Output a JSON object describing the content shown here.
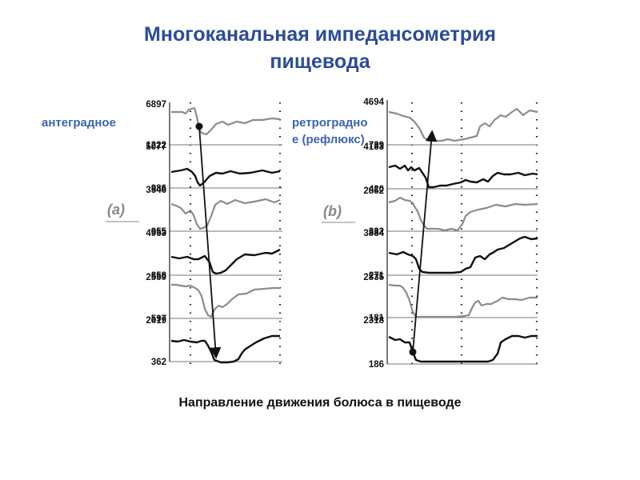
{
  "title": {
    "line1": "Многоканальная импедансометрия",
    "line2": "пищевода"
  },
  "labels": {
    "antegrade": "антеградное",
    "retrograde": "ретроградное (рефлюкс)"
  },
  "caption": "Направление движения болюса в пищеводе",
  "colors": {
    "title": "#2b4c9a",
    "label": "#3c64b4",
    "trace_dark": "#111111",
    "trace_gray": "#8c8c8c",
    "divider": "#777777"
  },
  "panels": [
    {
      "label": "(a)",
      "ticks": [
        "6897",
        "1222",
        "5077",
        "986",
        "3546",
        "955",
        "4953",
        "858",
        "2559",
        "597",
        "2619",
        "362"
      ],
      "traces": [
        "gray",
        "dark",
        "gray",
        "dark",
        "gray",
        "dark"
      ],
      "arrow": "down"
    },
    {
      "label": "(b)",
      "ticks": [
        "4694",
        "739",
        "4183",
        "420",
        "2852",
        "332",
        "3884",
        "271",
        "2835",
        "181",
        "2318",
        "186"
      ],
      "traces": [
        "gray",
        "dark",
        "gray",
        "dark",
        "gray",
        "dark"
      ],
      "arrow": "up"
    }
  ]
}
